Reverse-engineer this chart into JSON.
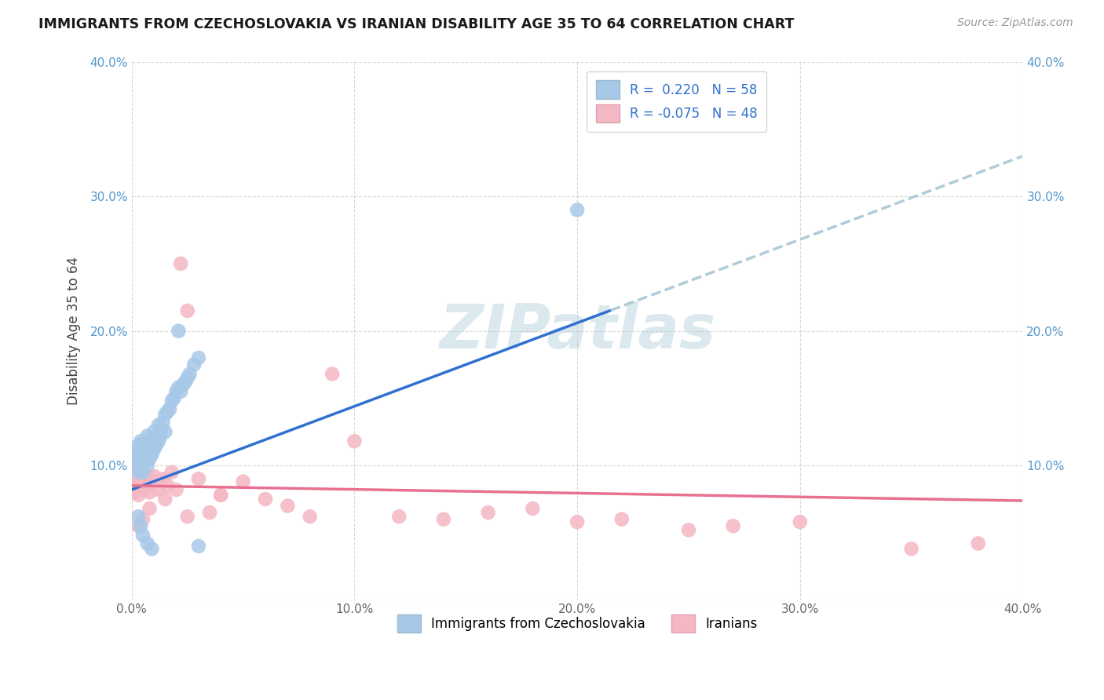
{
  "title": "IMMIGRANTS FROM CZECHOSLOVAKIA VS IRANIAN DISABILITY AGE 35 TO 64 CORRELATION CHART",
  "source": "Source: ZipAtlas.com",
  "ylabel": "Disability Age 35 to 64",
  "xlim": [
    0.0,
    0.4
  ],
  "ylim": [
    0.0,
    0.4
  ],
  "xticks": [
    0.0,
    0.1,
    0.2,
    0.3,
    0.4
  ],
  "yticks": [
    0.0,
    0.1,
    0.2,
    0.3,
    0.4
  ],
  "xtick_labels": [
    "0.0%",
    "10.0%",
    "20.0%",
    "30.0%",
    "40.0%"
  ],
  "ytick_labels_left": [
    "",
    "10.0%",
    "20.0%",
    "30.0%",
    "40.0%"
  ],
  "ytick_labels_right": [
    "",
    "10.0%",
    "20.0%",
    "30.0%",
    "40.0%"
  ],
  "blue_R": 0.22,
  "blue_N": 58,
  "pink_R": -0.075,
  "pink_N": 48,
  "blue_color": "#a8c8e8",
  "pink_color": "#f4b8c4",
  "blue_line_color": "#3070d0",
  "pink_line_color": "#e87090",
  "blue_dash_color": "#b0ccd8",
  "legend_label_blue": "Immigrants from Czechoslovakia",
  "legend_label_pink": "Iranians",
  "blue_x": [
    0.002,
    0.002,
    0.003,
    0.003,
    0.003,
    0.003,
    0.004,
    0.004,
    0.004,
    0.004,
    0.005,
    0.005,
    0.005,
    0.005,
    0.006,
    0.006,
    0.006,
    0.007,
    0.007,
    0.007,
    0.008,
    0.008,
    0.008,
    0.009,
    0.009,
    0.01,
    0.01,
    0.01,
    0.011,
    0.011,
    0.012,
    0.012,
    0.013,
    0.013,
    0.014,
    0.015,
    0.015,
    0.016,
    0.017,
    0.018,
    0.019,
    0.02,
    0.021,
    0.022,
    0.023,
    0.024,
    0.025,
    0.026,
    0.028,
    0.03,
    0.003,
    0.004,
    0.005,
    0.007,
    0.009,
    0.021,
    0.2,
    0.03
  ],
  "blue_y": [
    0.11,
    0.105,
    0.095,
    0.1,
    0.115,
    0.108,
    0.112,
    0.105,
    0.098,
    0.118,
    0.1,
    0.108,
    0.095,
    0.115,
    0.105,
    0.112,
    0.118,
    0.1,
    0.108,
    0.122,
    0.11,
    0.105,
    0.118,
    0.115,
    0.108,
    0.112,
    0.118,
    0.125,
    0.115,
    0.12,
    0.118,
    0.13,
    0.122,
    0.128,
    0.132,
    0.138,
    0.125,
    0.14,
    0.142,
    0.148,
    0.15,
    0.155,
    0.158,
    0.155,
    0.16,
    0.162,
    0.165,
    0.168,
    0.175,
    0.18,
    0.062,
    0.055,
    0.048,
    0.042,
    0.038,
    0.2,
    0.29,
    0.04
  ],
  "pink_x": [
    0.001,
    0.001,
    0.002,
    0.002,
    0.003,
    0.003,
    0.004,
    0.004,
    0.005,
    0.005,
    0.006,
    0.007,
    0.008,
    0.009,
    0.01,
    0.012,
    0.014,
    0.016,
    0.018,
    0.02,
    0.022,
    0.025,
    0.03,
    0.035,
    0.04,
    0.05,
    0.06,
    0.07,
    0.08,
    0.09,
    0.1,
    0.12,
    0.14,
    0.16,
    0.18,
    0.2,
    0.22,
    0.25,
    0.27,
    0.3,
    0.003,
    0.005,
    0.008,
    0.015,
    0.025,
    0.04,
    0.35,
    0.38
  ],
  "pink_y": [
    0.088,
    0.08,
    0.095,
    0.082,
    0.09,
    0.078,
    0.092,
    0.085,
    0.082,
    0.09,
    0.085,
    0.092,
    0.08,
    0.088,
    0.092,
    0.082,
    0.09,
    0.085,
    0.095,
    0.082,
    0.25,
    0.215,
    0.09,
    0.065,
    0.078,
    0.088,
    0.075,
    0.07,
    0.062,
    0.168,
    0.118,
    0.062,
    0.06,
    0.065,
    0.068,
    0.058,
    0.06,
    0.052,
    0.055,
    0.058,
    0.055,
    0.06,
    0.068,
    0.075,
    0.062,
    0.078,
    0.038,
    0.042
  ],
  "watermark": "ZIPatlas",
  "background_color": "#ffffff",
  "grid_color": "#d0d0d0",
  "blue_line_x_solid_end": 0.215,
  "blue_line_intercept": 0.082,
  "blue_line_slope": 0.62,
  "pink_line_intercept": 0.085,
  "pink_line_slope": -0.028
}
